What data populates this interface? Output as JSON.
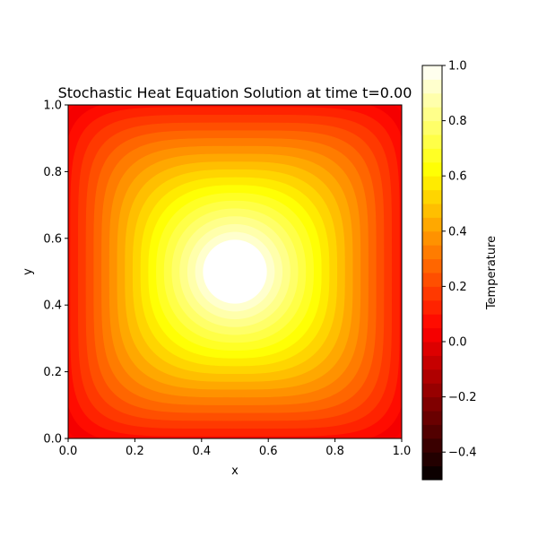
{
  "chart_data": {
    "type": "heatmap",
    "subtype": "filled-contour",
    "title": "Stochastic Heat Equation Solution at time t=0.00",
    "xlabel": "x",
    "ylabel": "y",
    "xlim": [
      0.0,
      1.0
    ],
    "ylim": [
      0.0,
      1.0
    ],
    "x_ticks": [
      "0.0",
      "0.2",
      "0.4",
      "0.6",
      "0.8",
      "1.0"
    ],
    "y_ticks": [
      "0.0",
      "0.2",
      "0.4",
      "0.6",
      "0.8",
      "1.0"
    ],
    "colormap": "hot",
    "field": {
      "center": [
        0.5,
        0.5
      ],
      "peak_value": 1.0,
      "edge_value": 0.0,
      "description_of_shape": "single smooth peak at the center, decaying toward the boundary"
    },
    "colorbar": {
      "label": "Temperature",
      "range": [
        -0.5,
        1.0
      ],
      "ticks": [
        "1.0",
        "0.8",
        "0.6",
        "0.4",
        "0.2",
        "0.0",
        "−0.2",
        "−0.4"
      ],
      "levels": 30
    },
    "grid": false,
    "legend": "none"
  }
}
